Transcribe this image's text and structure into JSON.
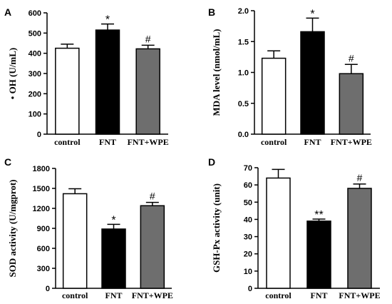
{
  "chart_data": [
    {
      "type": "bar",
      "panel": "A",
      "categories": [
        "control",
        "FNT",
        "FNT+WPE"
      ],
      "values": [
        425,
        515,
        422
      ],
      "errors": [
        20,
        30,
        18
      ],
      "annotations": [
        "",
        "*",
        "#"
      ],
      "fill_colors": [
        "#ffffff",
        "#000000",
        "#6e6e6e"
      ],
      "ylabel": "• OH (U/mL)",
      "ylim": [
        0,
        600
      ],
      "yticks": [
        0,
        100,
        200,
        300,
        400,
        500,
        600
      ],
      "ytick_labels": [
        "0",
        "100",
        "200",
        "300",
        "400",
        "500",
        "600"
      ]
    },
    {
      "type": "bar",
      "panel": "B",
      "categories": [
        "control",
        "FNT",
        "FNT+WPE"
      ],
      "values": [
        1.23,
        1.66,
        0.98
      ],
      "errors": [
        0.12,
        0.22,
        0.15
      ],
      "annotations": [
        "",
        "*",
        "#"
      ],
      "fill_colors": [
        "#ffffff",
        "#000000",
        "#6e6e6e"
      ],
      "ylabel": "MDA level (nmol/mL)",
      "ylim": [
        0,
        2.0
      ],
      "yticks": [
        0,
        0.5,
        1.0,
        1.5,
        2.0
      ],
      "ytick_labels": [
        "0.0",
        "0.5",
        "1.0",
        "1.5",
        "2.0"
      ]
    },
    {
      "type": "bar",
      "panel": "C",
      "categories": [
        "control",
        "FNT",
        "FNT+WPE"
      ],
      "values": [
        1420,
        890,
        1240
      ],
      "errors": [
        75,
        70,
        50
      ],
      "annotations": [
        "",
        "*",
        "#"
      ],
      "fill_colors": [
        "#ffffff",
        "#000000",
        "#6e6e6e"
      ],
      "ylabel": "SOD activity (U/mgprot)",
      "ylim": [
        0,
        1800
      ],
      "yticks": [
        0,
        300,
        600,
        900,
        1200,
        1500,
        1800
      ],
      "ytick_labels": [
        "0",
        "300",
        "600",
        "900",
        "1200",
        "1500",
        "1800"
      ]
    },
    {
      "type": "bar",
      "panel": "D",
      "categories": [
        "control",
        "FNT",
        "FNT+WPE"
      ],
      "values": [
        64,
        39,
        58
      ],
      "errors": [
        5,
        1.2,
        2.5
      ],
      "annotations": [
        "",
        "**",
        "#"
      ],
      "fill_colors": [
        "#ffffff",
        "#000000",
        "#6e6e6e"
      ],
      "ylabel": "GSH-Px activity (unit)",
      "ylim": [
        0,
        70
      ],
      "yticks": [
        0,
        10,
        20,
        30,
        40,
        50,
        60,
        70
      ],
      "ytick_labels": [
        "0",
        "10",
        "20",
        "30",
        "40",
        "50",
        "60",
        "70"
      ]
    }
  ]
}
